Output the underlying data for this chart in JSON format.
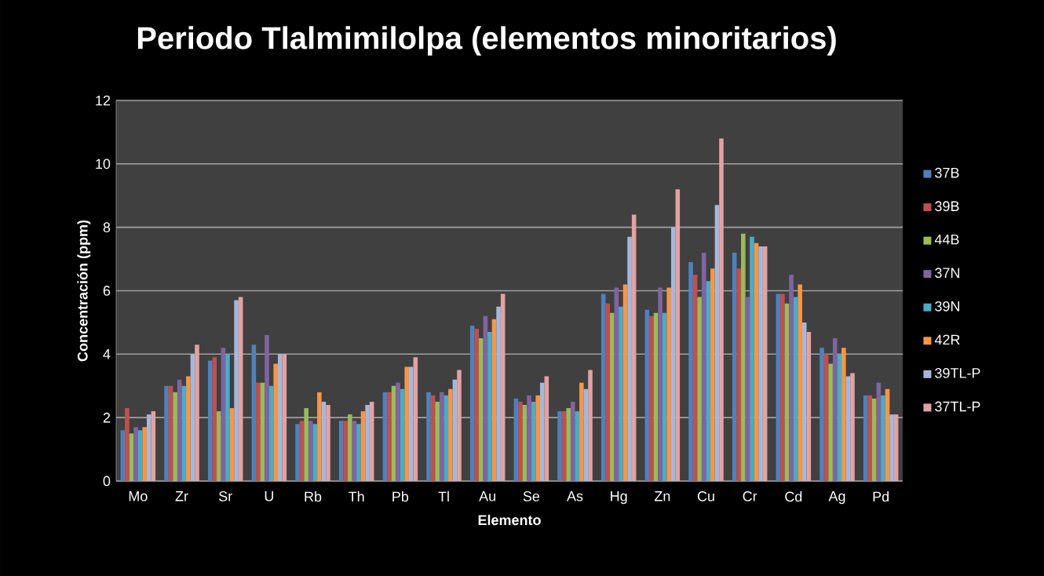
{
  "chart_data": {
    "type": "bar",
    "title": "Periodo Tlalmimilolpa (elementos minoritarios)",
    "xlabel": "Elemento",
    "ylabel": "Concentración  (ppm)",
    "categories": [
      "Mo",
      "Zr",
      "Sr",
      "U",
      "Rb",
      "Th",
      "Pb",
      "Tl",
      "Au",
      "Se",
      "As",
      "Hg",
      "Zn",
      "Cu",
      "Cr",
      "Cd",
      "Ag",
      "Pd"
    ],
    "series": [
      {
        "name": "37B",
        "color": "#4f81bd",
        "values": [
          1.6,
          3.0,
          3.8,
          4.3,
          1.8,
          1.9,
          2.8,
          2.8,
          4.9,
          2.6,
          2.2,
          5.9,
          5.4,
          6.9,
          7.2,
          5.9,
          4.2,
          2.7
        ]
      },
      {
        "name": "39B",
        "color": "#c0504d",
        "values": [
          2.3,
          3.0,
          3.9,
          3.1,
          1.9,
          1.9,
          2.8,
          2.7,
          4.8,
          2.5,
          2.2,
          5.6,
          5.2,
          6.5,
          6.7,
          5.9,
          4.0,
          2.7
        ]
      },
      {
        "name": "44B",
        "color": "#9bbb59",
        "values": [
          1.5,
          2.8,
          2.2,
          3.1,
          2.3,
          2.1,
          3.0,
          2.5,
          4.5,
          2.4,
          2.3,
          5.3,
          5.3,
          5.8,
          7.8,
          5.6,
          3.7,
          2.6
        ]
      },
      {
        "name": "37N",
        "color": "#8064a2",
        "values": [
          1.7,
          3.2,
          4.2,
          4.6,
          1.9,
          1.9,
          3.1,
          2.8,
          5.2,
          2.7,
          2.5,
          6.1,
          6.1,
          7.2,
          5.8,
          6.5,
          4.5,
          3.1
        ]
      },
      {
        "name": "39N",
        "color": "#4bacc6",
        "values": [
          1.6,
          3.0,
          4.0,
          3.0,
          1.8,
          1.8,
          2.9,
          2.7,
          4.7,
          2.5,
          2.2,
          5.5,
          5.3,
          6.3,
          7.7,
          5.8,
          4.0,
          2.7
        ]
      },
      {
        "name": "42R",
        "color": "#f79646",
        "values": [
          1.7,
          3.3,
          2.3,
          3.7,
          2.8,
          2.2,
          3.6,
          2.9,
          5.1,
          2.7,
          3.1,
          6.2,
          6.1,
          6.7,
          7.5,
          6.2,
          4.2,
          2.9
        ]
      },
      {
        "name": "39TL-P",
        "color": "#a5b8dc",
        "values": [
          2.1,
          4.0,
          5.7,
          4.0,
          2.5,
          2.4,
          3.6,
          3.2,
          5.5,
          3.1,
          2.9,
          7.7,
          8.0,
          8.7,
          7.4,
          5.0,
          3.3,
          2.1
        ]
      },
      {
        "name": "37TL-P",
        "color": "#e3a2a2",
        "values": [
          2.2,
          4.3,
          5.8,
          4.0,
          2.4,
          2.5,
          3.9,
          3.5,
          5.9,
          3.3,
          3.5,
          8.4,
          9.2,
          10.8,
          7.4,
          4.7,
          3.4,
          2.1
        ]
      }
    ],
    "ylim": [
      0,
      12
    ],
    "yticks": [
      0,
      2,
      4,
      6,
      8,
      10,
      12
    ],
    "grid": "y",
    "legend": "right"
  }
}
